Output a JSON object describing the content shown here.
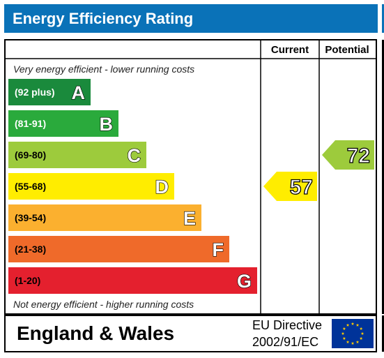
{
  "chart_data": {
    "type": "bar",
    "title": "Energy Efficiency Rating",
    "column_headers": [
      "Current",
      "Potential"
    ],
    "top_note": "Very energy efficient - lower running costs",
    "bottom_note": "Not energy efficient - higher running costs",
    "bands": [
      {
        "letter": "A",
        "range": "(92 plus)",
        "color": "#1a8a3c",
        "text_color": "#ffffff"
      },
      {
        "letter": "B",
        "range": "(81-91)",
        "color": "#2aaa3c",
        "text_color": "#ffffff"
      },
      {
        "letter": "C",
        "range": "(69-80)",
        "color": "#9dcb3c",
        "text_color": "#000000"
      },
      {
        "letter": "D",
        "range": "(55-68)",
        "color": "#ffed00",
        "text_color": "#000000"
      },
      {
        "letter": "E",
        "range": "(39-54)",
        "color": "#fbb02f",
        "text_color": "#000000"
      },
      {
        "letter": "F",
        "range": "(21-38)",
        "color": "#ef6a2a",
        "text_color": "#000000"
      },
      {
        "letter": "G",
        "range": "(1-20)",
        "color": "#e4202e",
        "text_color": "#000000"
      }
    ],
    "current": {
      "value": 57,
      "band": "D",
      "color": "#ffed00"
    },
    "potential": {
      "value": 72,
      "band": "C",
      "color": "#9dcb3c"
    },
    "footer": {
      "region": "England & Wales",
      "directive_line1": "EU Directive",
      "directive_line2": "2002/91/EC"
    }
  },
  "colors": {
    "title_bar": "#0a72b8",
    "eu_flag": "#003399",
    "eu_stars": "#ffcc00"
  }
}
